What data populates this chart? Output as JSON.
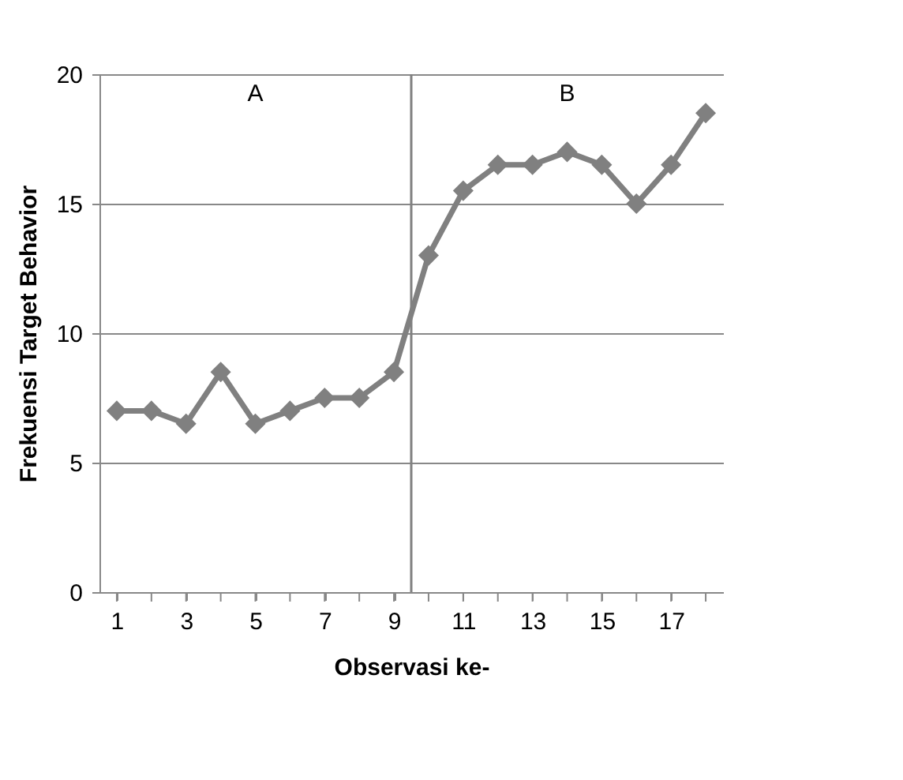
{
  "chart_data": {
    "type": "line",
    "xlabel": "Observasi ke-",
    "ylabel": "Frekuensi Target Behavior",
    "x": [
      1,
      2,
      3,
      4,
      5,
      6,
      7,
      8,
      9,
      10,
      11,
      12,
      13,
      14,
      15,
      16,
      17,
      18
    ],
    "series": [
      {
        "color": "#808080",
        "values": [
          7,
          7,
          6.5,
          8.5,
          6.5,
          7,
          7.5,
          7.5,
          8.5,
          13,
          15.5,
          16.5,
          16.5,
          17,
          16.5,
          15,
          16.5,
          18.5
        ]
      }
    ],
    "xlim": [
      0.5,
      18.5
    ],
    "xticks": [
      1,
      {
        "value": 2,
        "label": null
      },
      3,
      {
        "value": 4,
        "label": null
      },
      5,
      {
        "value": 6,
        "label": null
      },
      7,
      {
        "value": 8,
        "label": null
      },
      9,
      {
        "value": 10,
        "label": null
      },
      11,
      {
        "value": 12,
        "label": null
      },
      13,
      {
        "value": 14,
        "label": null
      },
      15,
      {
        "value": 16,
        "label": null
      },
      17,
      {
        "value": 18,
        "label": null
      }
    ],
    "ylim": [
      0,
      20
    ],
    "yticks": [
      0,
      5,
      10,
      15,
      20
    ],
    "grid": "y",
    "marker": "diamond",
    "line_style": "solid",
    "ref_lines": [
      {
        "axis": "x",
        "value": 9.5,
        "color": "#808080"
      }
    ],
    "annotations": [
      "A",
      "B"
    ]
  }
}
